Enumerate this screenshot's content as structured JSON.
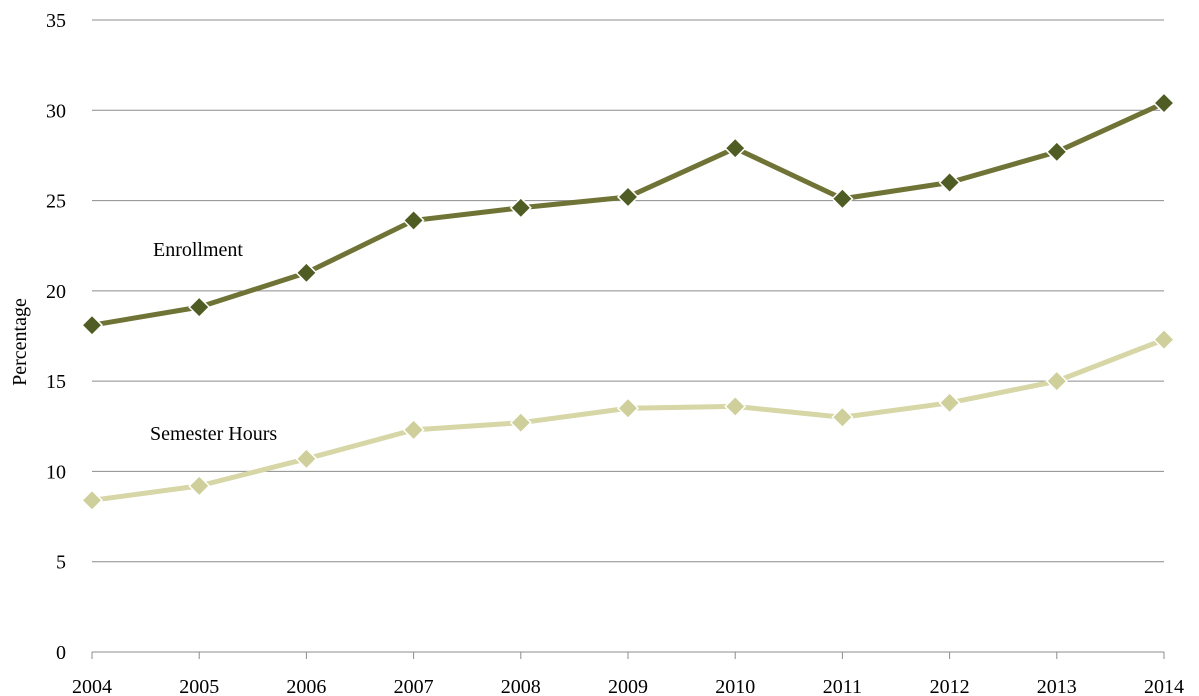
{
  "chart_data": {
    "type": "line",
    "title": "",
    "xlabel": "",
    "ylabel": "Percentage",
    "ylim": [
      0,
      35
    ],
    "yticks": [
      "0",
      "5",
      "10",
      "15",
      "20",
      "25",
      "30",
      "35"
    ],
    "categories": [
      "2004",
      "2005",
      "2006",
      "2007",
      "2008",
      "2009",
      "2010",
      "2011",
      "2012",
      "2013",
      "2014"
    ],
    "grid": true,
    "legend": "none",
    "series": [
      {
        "name": "Enrollment",
        "color": "#6f7436",
        "marker_color": "#4f5d24",
        "values": [
          18.1,
          19.1,
          21.0,
          23.9,
          24.6,
          25.2,
          27.9,
          25.1,
          26.0,
          27.7,
          30.4
        ]
      },
      {
        "name": "Semester Hours",
        "color": "#d6d6a6",
        "marker_color": "#cfcf9c",
        "values": [
          8.4,
          9.2,
          10.7,
          12.3,
          12.7,
          13.5,
          13.6,
          13.0,
          13.8,
          15.0,
          17.3
        ]
      }
    ]
  }
}
